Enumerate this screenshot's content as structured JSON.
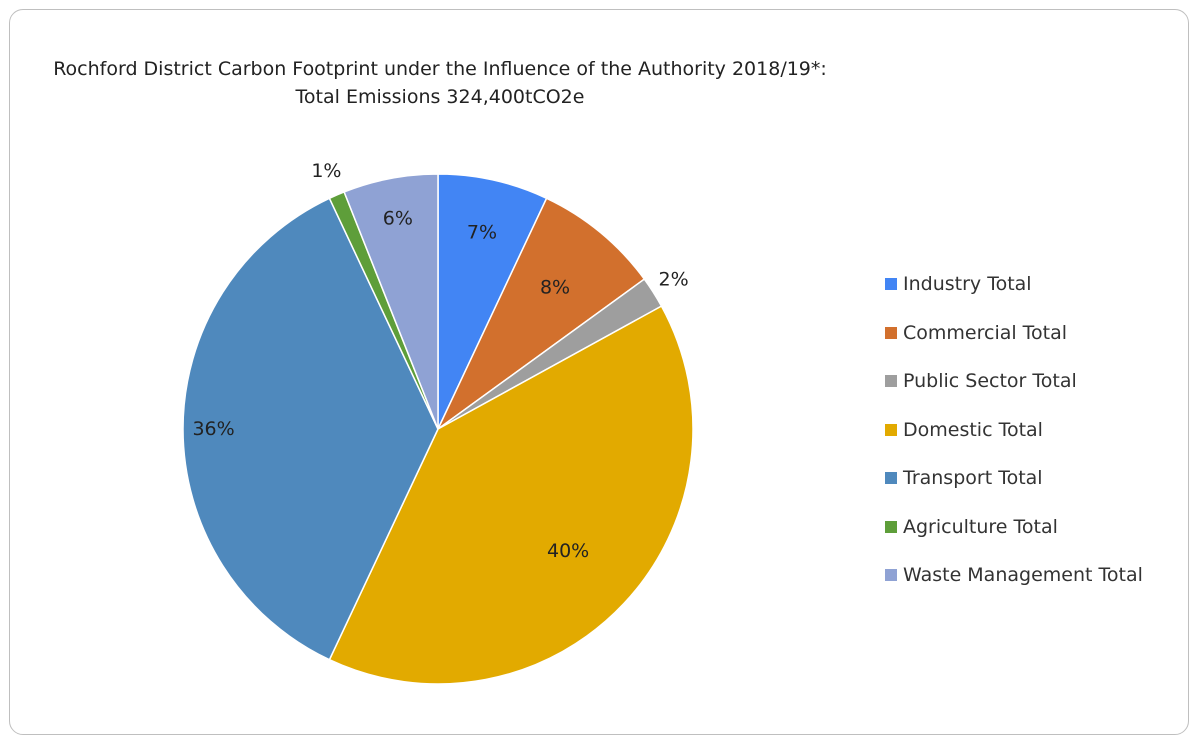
{
  "chart_data": {
    "type": "pie",
    "title": "Rochford District Carbon Footprint under the Influence of the Authority 2018/19*:",
    "subtitle": "Total Emissions 324,400tCO2e",
    "legend_position": "right",
    "start_angle": 0,
    "direction": "clockwise",
    "slices": [
      {
        "label": "Industry Total",
        "value": 7,
        "display": "7%",
        "color": "#4285f4"
      },
      {
        "label": "Commercial Total",
        "value": 8,
        "display": "8%",
        "color": "#d2702d"
      },
      {
        "label": "Public Sector Total",
        "value": 2,
        "display": "2%",
        "color": "#9e9e9e"
      },
      {
        "label": "Domestic Total",
        "value": 40,
        "display": "40%",
        "color": "#e2aa00"
      },
      {
        "label": "Transport Total",
        "value": 36,
        "display": "36%",
        "color": "#4f89bd"
      },
      {
        "label": "Agriculture Total",
        "value": 1,
        "display": "1%",
        "color": "#5e9e3a"
      },
      {
        "label": "Waste Management Total",
        "value": 6,
        "display": "6%",
        "color": "#8fa2d4"
      }
    ]
  }
}
